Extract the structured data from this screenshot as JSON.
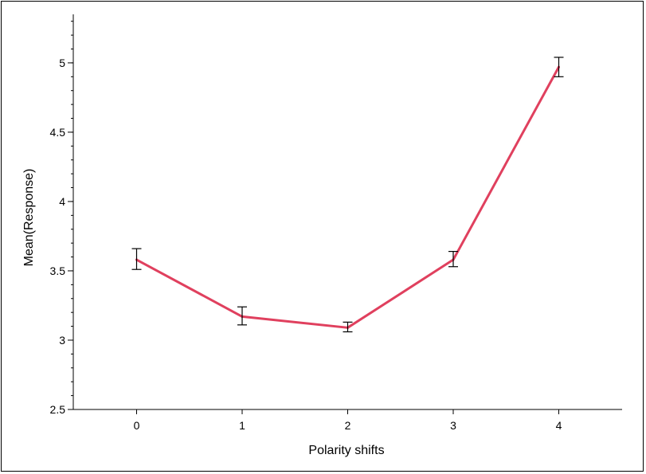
{
  "chart_data": {
    "type": "line",
    "xlabel": "Polarity shifts",
    "ylabel": "Mean(Response)",
    "categories": [
      "0",
      "1",
      "2",
      "3",
      "4"
    ],
    "x": [
      0,
      1,
      2,
      3,
      4
    ],
    "series": [
      {
        "values": [
          3.58,
          3.17,
          3.09,
          3.58,
          4.97
        ],
        "error_low": [
          3.51,
          3.11,
          3.06,
          3.53,
          4.9
        ],
        "error_high": [
          3.66,
          3.24,
          3.13,
          3.64,
          5.04
        ],
        "color": "#e0405e"
      }
    ],
    "ylim": [
      2.5,
      5.35
    ],
    "xlim": [
      -0.6,
      4.6
    ],
    "yticks": [
      "2.5",
      "3",
      "3.5",
      "4",
      "4.5",
      "5"
    ],
    "ytick_values": [
      2.5,
      3,
      3.5,
      4,
      4.5,
      5
    ],
    "minor_ytick_step": 0.1,
    "grid": false
  }
}
